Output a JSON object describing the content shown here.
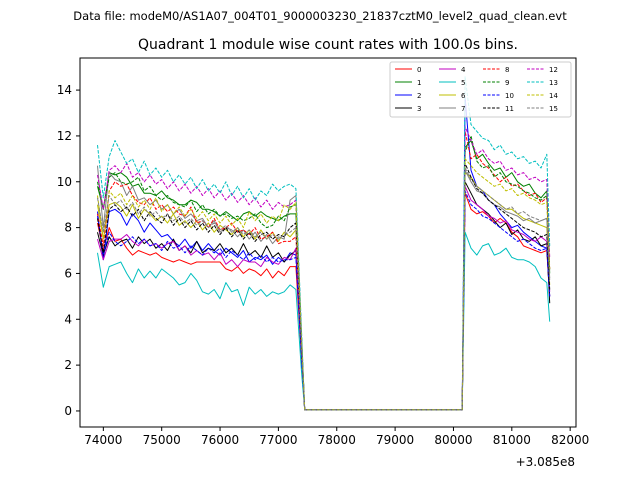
{
  "chart_data": {
    "type": "line",
    "suptitle": "Data file: modeM0/AS1A07_004T01_9000003230_21837cztM0_level2_quad_clean.evt",
    "title": "Quadrant 1 module wise count rates with 100.0s bins.",
    "xlabel": "",
    "ylabel": "",
    "x_offset_label": "+3.085e8",
    "xlim": [
      73600,
      82100
    ],
    "ylim": [
      -0.7,
      15.4
    ],
    "xticks": [
      74000,
      75000,
      76000,
      77000,
      78000,
      79000,
      80000,
      81000,
      82000
    ],
    "yticks": [
      0,
      2,
      4,
      6,
      8,
      10,
      12,
      14
    ],
    "legend_position": "top-right",
    "gap_start": 77450,
    "gap_end": 80150,
    "x": [
      73900,
      74000,
      74100,
      74200,
      74300,
      74400,
      74500,
      74600,
      74700,
      74800,
      74900,
      75000,
      75100,
      75200,
      75300,
      75400,
      75500,
      75600,
      75700,
      75800,
      75900,
      76000,
      76100,
      76200,
      76300,
      76400,
      76500,
      76600,
      76700,
      76800,
      76900,
      77000,
      77100,
      77200,
      77300,
      77400,
      77450,
      80150,
      80200,
      80300,
      80400,
      80500,
      80600,
      80700,
      80800,
      80900,
      81000,
      81100,
      81200,
      81300,
      81400,
      81500,
      81600,
      81650
    ],
    "series": [
      {
        "name": "0",
        "color": "#ff0000",
        "style": "solid",
        "values": [
          8.2,
          7.0,
          8.0,
          7.4,
          7.5,
          7.1,
          6.8,
          7.0,
          6.9,
          6.8,
          6.9,
          6.7,
          6.6,
          6.5,
          6.6,
          6.5,
          6.4,
          6.5,
          6.5,
          6.5,
          6.5,
          6.5,
          6.2,
          6.1,
          6.3,
          6.0,
          6.2,
          6.1,
          5.9,
          6.2,
          5.8,
          6.1,
          5.9,
          6.3,
          6.3,
          2.2,
          0.05,
          0.05,
          9.5,
          8.8,
          8.6,
          8.7,
          8.5,
          8.2,
          8.4,
          8.2,
          7.8,
          7.6,
          7.2,
          7.1,
          7.0,
          6.9,
          7.0,
          5.0
        ]
      },
      {
        "name": "1",
        "color": "#008000",
        "style": "solid",
        "values": [
          9.8,
          8.8,
          10.4,
          10.3,
          10.4,
          10.2,
          9.8,
          9.9,
          9.5,
          9.5,
          9.4,
          9.6,
          9.3,
          9.2,
          9.0,
          9.0,
          9.2,
          9.1,
          8.8,
          8.8,
          8.7,
          8.5,
          8.7,
          8.5,
          8.3,
          8.6,
          8.7,
          8.5,
          8.7,
          8.5,
          8.4,
          8.3,
          8.5,
          8.6,
          8.6,
          3.0,
          0.05,
          0.05,
          11.5,
          11.8,
          11.0,
          11.2,
          10.8,
          10.5,
          10.6,
          10.2,
          10.4,
          10.0,
          9.8,
          9.9,
          9.5,
          9.3,
          9.6,
          6.0
        ]
      },
      {
        "name": "2",
        "color": "#0000ff",
        "style": "solid",
        "values": [
          8.7,
          6.6,
          8.7,
          8.8,
          8.6,
          8.1,
          8.6,
          8.3,
          7.8,
          8.2,
          7.9,
          7.6,
          7.7,
          7.4,
          7.2,
          7.5,
          7.1,
          7.4,
          7.0,
          7.3,
          7.0,
          6.8,
          7.1,
          6.9,
          6.7,
          7.0,
          6.5,
          6.7,
          6.6,
          6.8,
          6.4,
          6.7,
          6.5,
          6.9,
          6.8,
          2.6,
          0.05,
          0.05,
          13.7,
          10.5,
          9.8,
          9.6,
          9.2,
          9.0,
          8.6,
          8.3,
          8.0,
          8.1,
          7.8,
          7.6,
          7.4,
          7.2,
          7.1,
          5.0
        ]
      },
      {
        "name": "3",
        "color": "#000000",
        "style": "solid",
        "values": [
          7.8,
          6.8,
          7.6,
          7.2,
          7.4,
          7.5,
          7.1,
          7.6,
          7.3,
          7.5,
          7.1,
          7.3,
          7.0,
          7.5,
          7.0,
          7.2,
          6.9,
          7.4,
          6.9,
          7.1,
          7.0,
          7.3,
          6.9,
          7.1,
          6.8,
          7.3,
          6.8,
          7.0,
          6.7,
          7.2,
          6.7,
          6.9,
          6.5,
          6.8,
          7.0,
          2.4,
          0.05,
          0.05,
          10.0,
          9.5,
          9.0,
          8.8,
          8.6,
          8.3,
          8.0,
          8.2,
          7.7,
          7.9,
          7.5,
          7.4,
          7.6,
          7.2,
          7.3,
          4.7
        ]
      },
      {
        "name": "4",
        "color": "#c000c0",
        "style": "solid",
        "values": [
          7.5,
          6.6,
          7.4,
          7.5,
          7.5,
          7.7,
          7.4,
          7.2,
          7.5,
          7.2,
          7.3,
          7.1,
          7.3,
          7.4,
          7.0,
          7.2,
          6.8,
          7.0,
          6.8,
          6.9,
          6.6,
          6.9,
          6.4,
          6.6,
          6.3,
          6.6,
          6.5,
          6.5,
          6.3,
          6.7,
          6.5,
          6.4,
          6.7,
          6.6,
          7.1,
          2.5,
          0.05,
          0.05,
          9.8,
          9.2,
          9.0,
          8.8,
          8.5,
          8.4,
          8.2,
          8.3,
          7.9,
          7.8,
          7.7,
          7.5,
          7.4,
          7.6,
          7.4,
          5.2
        ]
      },
      {
        "name": "5",
        "color": "#00bfbf",
        "style": "solid",
        "values": [
          6.9,
          5.4,
          6.3,
          6.4,
          6.5,
          6.0,
          5.6,
          6.2,
          5.8,
          6.1,
          5.8,
          6.2,
          6.0,
          5.8,
          5.5,
          5.6,
          6.0,
          5.7,
          5.2,
          5.1,
          5.3,
          4.9,
          5.6,
          5.2,
          5.3,
          4.6,
          5.4,
          5.1,
          5.3,
          5.0,
          5.2,
          5.1,
          5.2,
          5.5,
          5.3,
          1.6,
          0.05,
          0.05,
          7.8,
          7.1,
          6.8,
          7.2,
          7.3,
          6.8,
          6.9,
          7.1,
          6.7,
          6.6,
          6.6,
          6.5,
          6.3,
          5.8,
          5.6,
          3.9
        ]
      },
      {
        "name": "6",
        "color": "#bfbf00",
        "style": "solid",
        "values": [
          9.0,
          7.5,
          9.0,
          9.1,
          8.9,
          8.5,
          9.0,
          8.4,
          8.8,
          8.6,
          8.3,
          8.5,
          8.2,
          8.6,
          8.1,
          8.3,
          8.0,
          8.3,
          7.9,
          8.2,
          7.8,
          8.1,
          7.9,
          7.7,
          8.0,
          7.6,
          7.9,
          7.5,
          7.9,
          7.5,
          7.8,
          7.4,
          7.8,
          7.6,
          7.9,
          2.8,
          0.05,
          0.05,
          10.4,
          10.2,
          9.8,
          9.6,
          9.4,
          9.2,
          9.0,
          8.8,
          8.8,
          8.6,
          8.4,
          8.3,
          8.2,
          8.1,
          8.0,
          5.5
        ]
      },
      {
        "name": "7",
        "color": "#808080",
        "style": "solid",
        "values": [
          10.7,
          8.0,
          10.4,
          10.1,
          10.0,
          9.4,
          9.8,
          9.2,
          9.3,
          9.0,
          9.2,
          8.8,
          9.0,
          8.6,
          8.8,
          8.4,
          8.6,
          8.3,
          8.4,
          8.0,
          8.3,
          7.8,
          8.0,
          7.9,
          7.6,
          7.9,
          7.5,
          7.8,
          7.4,
          7.7,
          7.3,
          7.6,
          7.5,
          9.2,
          9.4,
          3.0,
          0.05,
          0.05,
          10.5,
          10.0,
          9.6,
          9.5,
          9.2,
          9.0,
          8.9,
          8.7,
          8.6,
          8.5,
          8.3,
          8.4,
          8.2,
          8.3,
          8.4,
          5.8
        ]
      },
      {
        "name": "8",
        "color": "#ff0000",
        "style": "dashed",
        "values": [
          8.6,
          7.2,
          9.6,
          10.0,
          9.8,
          9.9,
          9.4,
          9.1,
          9.0,
          9.3,
          8.8,
          9.0,
          8.7,
          8.9,
          8.6,
          8.5,
          8.9,
          8.2,
          8.3,
          8.0,
          8.4,
          7.9,
          8.0,
          8.2,
          7.8,
          7.9,
          7.7,
          8.0,
          7.5,
          7.6,
          7.8,
          7.3,
          7.4,
          7.4,
          7.6,
          2.7,
          0.05,
          0.05,
          12.2,
          11.0,
          11.2,
          10.8,
          10.6,
          10.3,
          10.0,
          10.2,
          9.8,
          9.9,
          9.6,
          9.4,
          9.5,
          9.1,
          9.3,
          6.2
        ]
      },
      {
        "name": "9",
        "color": "#008000",
        "style": "dashed",
        "values": [
          10.0,
          8.8,
          10.2,
          10.4,
          10.0,
          9.9,
          10.0,
          10.2,
          9.6,
          9.8,
          9.4,
          9.2,
          9.4,
          9.1,
          9.0,
          8.9,
          9.2,
          8.7,
          9.0,
          8.6,
          8.8,
          8.5,
          8.6,
          8.4,
          8.5,
          8.3,
          8.4,
          8.6,
          8.2,
          8.0,
          8.1,
          8.5,
          8.3,
          8.9,
          9.0,
          3.0,
          0.05,
          0.05,
          11.3,
          12.0,
          10.9,
          10.6,
          10.7,
          10.2,
          10.4,
          10.0,
          9.9,
          9.8,
          9.6,
          9.5,
          9.3,
          9.2,
          9.4,
          6.1
        ]
      },
      {
        "name": "10",
        "color": "#0000ff",
        "style": "dashed",
        "values": [
          8.5,
          6.8,
          7.8,
          7.4,
          7.2,
          7.4,
          7.6,
          7.3,
          7.5,
          7.2,
          7.3,
          7.0,
          7.4,
          7.1,
          7.2,
          6.9,
          7.2,
          7.0,
          6.8,
          7.1,
          6.9,
          7.1,
          6.7,
          7.0,
          6.8,
          6.6,
          6.9,
          6.6,
          6.8,
          6.5,
          6.7,
          6.5,
          6.6,
          6.6,
          6.7,
          2.2,
          0.05,
          0.05,
          9.6,
          9.0,
          8.8,
          8.5,
          8.4,
          8.2,
          8.0,
          7.8,
          7.6,
          7.4,
          7.5,
          7.3,
          7.1,
          7.0,
          7.1,
          5.0
        ]
      },
      {
        "name": "11",
        "color": "#000000",
        "style": "dashed",
        "values": [
          8.4,
          6.9,
          8.8,
          9.0,
          8.7,
          8.9,
          8.5,
          8.8,
          8.3,
          8.7,
          8.4,
          8.2,
          8.6,
          8.1,
          8.4,
          8.0,
          8.3,
          7.9,
          8.2,
          7.8,
          8.1,
          7.7,
          8.0,
          7.6,
          7.9,
          7.5,
          7.8,
          7.4,
          7.7,
          7.8,
          7.5,
          7.7,
          7.6,
          8.0,
          8.2,
          2.7,
          0.05,
          0.05,
          10.8,
          10.2,
          9.7,
          9.5,
          9.2,
          9.0,
          8.8,
          8.6,
          8.4,
          8.2,
          8.0,
          7.9,
          7.8,
          7.6,
          7.7,
          5.3
        ]
      },
      {
        "name": "12",
        "color": "#c000c0",
        "style": "dashed",
        "values": [
          10.3,
          8.8,
          10.5,
          10.7,
          10.4,
          10.8,
          10.2,
          10.4,
          10.0,
          10.3,
          9.9,
          10.1,
          9.7,
          10.0,
          9.6,
          9.9,
          9.5,
          9.8,
          9.4,
          9.7,
          9.3,
          9.6,
          9.2,
          9.5,
          9.1,
          9.4,
          9.0,
          9.3,
          8.9,
          9.2,
          8.8,
          9.1,
          8.9,
          9.0,
          9.2,
          3.1,
          0.05,
          0.05,
          12.4,
          11.8,
          11.2,
          11.4,
          11.0,
          10.8,
          10.9,
          10.5,
          10.6,
          10.3,
          10.4,
          10.1,
          10.2,
          10.0,
          10.1,
          6.7
        ]
      },
      {
        "name": "13",
        "color": "#00bfbf",
        "style": "dashed",
        "values": [
          11.6,
          9.3,
          11.1,
          11.8,
          11.3,
          10.8,
          11.0,
          10.4,
          10.9,
          10.3,
          10.6,
          10.2,
          10.5,
          10.0,
          10.3,
          9.9,
          10.2,
          9.7,
          10.1,
          9.6,
          9.9,
          9.5,
          10.0,
          9.4,
          9.8,
          9.3,
          9.7,
          9.2,
          9.6,
          9.4,
          9.9,
          9.6,
          9.8,
          9.9,
          9.7,
          3.3,
          0.05,
          0.05,
          14.6,
          12.5,
          12.2,
          11.9,
          11.8,
          11.4,
          11.6,
          11.2,
          11.3,
          11.0,
          11.1,
          10.8,
          10.9,
          10.6,
          11.2,
          7.2
        ]
      },
      {
        "name": "14",
        "color": "#bfbf00",
        "style": "dashed",
        "values": [
          9.4,
          7.5,
          9.6,
          9.3,
          9.5,
          9.0,
          9.4,
          8.9,
          9.2,
          8.8,
          9.3,
          8.7,
          9.0,
          8.6,
          8.9,
          8.5,
          8.8,
          8.4,
          8.7,
          8.3,
          8.6,
          8.2,
          8.5,
          8.1,
          8.4,
          8.0,
          8.7,
          8.3,
          8.6,
          8.2,
          8.5,
          8.3,
          9.0,
          8.8,
          9.1,
          2.9,
          0.05,
          0.05,
          11.0,
          10.7,
          10.4,
          10.2,
          10.0,
          9.8,
          9.9,
          9.6,
          9.7,
          9.4,
          9.5,
          9.3,
          9.2,
          9.0,
          9.1,
          6.2
        ]
      },
      {
        "name": "15",
        "color": "#808080",
        "style": "dashed",
        "values": [
          9.3,
          7.8,
          9.4,
          9.0,
          9.2,
          8.8,
          9.1,
          8.6,
          8.9,
          8.5,
          8.7,
          8.4,
          8.6,
          8.3,
          8.5,
          8.2,
          8.4,
          8.1,
          8.3,
          8.0,
          8.2,
          7.9,
          8.1,
          7.8,
          8.0,
          7.7,
          7.9,
          7.6,
          7.8,
          7.5,
          7.7,
          7.5,
          7.7,
          7.8,
          8.0,
          2.7,
          0.05,
          0.05,
          10.6,
          10.1,
          9.8,
          9.6,
          9.4,
          9.2,
          9.0,
          8.8,
          8.9,
          8.6,
          8.7,
          8.5,
          8.4,
          8.3,
          8.4,
          5.7
        ]
      }
    ]
  }
}
